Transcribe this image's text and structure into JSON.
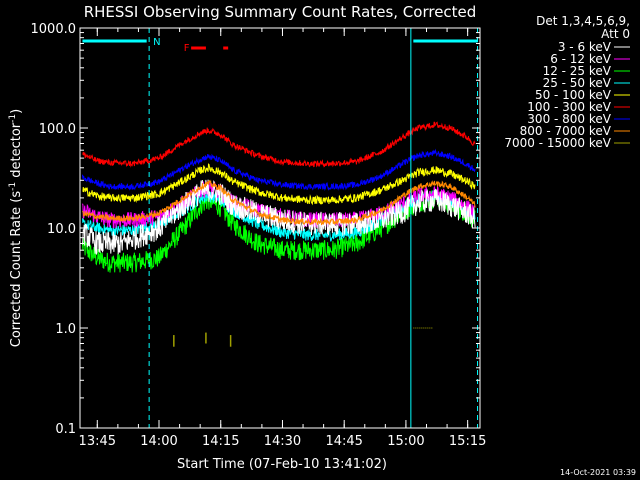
{
  "chart_data": {
    "type": "line",
    "title": "RHESSI Observing Summary Count Rates, Corrected",
    "xlabel": "Start Time (07-Feb-10 13:41:02)",
    "ylabel_main": "Corrected Count Rate (s",
    "ylabel_sup1": "-1",
    "ylabel_mid": " detector",
    "ylabel_sup2": "-1",
    "ylabel_end": ")",
    "yscale": "log",
    "xlim_min": [
      13.68,
      15.3
    ],
    "ylim": [
      0.1,
      1000
    ],
    "y_ticks": [
      {
        "v": 0.1,
        "label": "0.1"
      },
      {
        "v": 1,
        "label": "1.0"
      },
      {
        "v": 10,
        "label": "10.0"
      },
      {
        "v": 100,
        "label": "100.0"
      },
      {
        "v": 1000,
        "label": "1000.0"
      }
    ],
    "x_ticks": [
      {
        "v": 13.75,
        "label": "13:45"
      },
      {
        "v": 14.0,
        "label": "14:00"
      },
      {
        "v": 14.25,
        "label": "14:15"
      },
      {
        "v": 14.5,
        "label": "14:30"
      },
      {
        "v": 14.75,
        "label": "14:45"
      },
      {
        "v": 15.0,
        "label": "15:00"
      },
      {
        "v": 15.25,
        "label": "15:15"
      }
    ],
    "legend_header": [
      "Det 1,3,4,5,6,9,",
      "Att 0"
    ],
    "legend_position": "right",
    "series": [
      {
        "name": "3 - 6 keV",
        "color": "#ffffff",
        "x": [
          13.69,
          13.75,
          13.8,
          13.85,
          14.0,
          14.1,
          14.17,
          14.2,
          14.25,
          14.3,
          14.4,
          14.5,
          14.6,
          14.7,
          14.8,
          14.9,
          15.0,
          15.05,
          15.12,
          15.18,
          15.25,
          15.28
        ],
        "y": [
          9,
          7,
          7,
          7,
          10,
          17,
          23,
          24,
          22,
          17,
          14,
          12,
          11,
          11,
          11,
          12,
          15,
          18,
          19,
          17,
          14,
          12
        ],
        "noise": 0.12
      },
      {
        "name": "6 - 12 keV",
        "color": "#ff00ff",
        "x": [
          13.69,
          13.75,
          13.8,
          13.9,
          14.0,
          14.1,
          14.17,
          14.2,
          14.25,
          14.3,
          14.4,
          14.5,
          14.6,
          14.7,
          14.8,
          14.9,
          15.0,
          15.05,
          15.12,
          15.18,
          15.25,
          15.28
        ],
        "y": [
          15,
          13,
          12,
          12,
          13,
          18,
          24,
          25,
          23,
          18,
          15,
          13,
          12,
          12,
          12,
          14,
          18,
          21,
          22,
          20,
          16,
          14
        ],
        "noise": 0.08
      },
      {
        "name": "12 - 25 keV",
        "color": "#00ff00",
        "x": [
          13.69,
          13.75,
          13.8,
          13.9,
          14.0,
          14.1,
          14.17,
          14.2,
          14.25,
          14.3,
          14.4,
          14.5,
          14.6,
          14.7,
          14.8,
          14.9,
          15.0,
          15.05,
          15.12,
          15.18,
          15.25,
          15.28
        ],
        "y": [
          6.5,
          5,
          4.5,
          4.5,
          5,
          10,
          17,
          19,
          16,
          11,
          7,
          6,
          6,
          6,
          7,
          10,
          15,
          18,
          20,
          17,
          14,
          12
        ],
        "noise": 0.1
      },
      {
        "name": "25 - 50 keV",
        "color": "#00ffff",
        "x": [
          13.69,
          13.75,
          13.8,
          13.9,
          14.0,
          14.1,
          14.17,
          14.2,
          14.25,
          14.3,
          14.4,
          14.5,
          14.6,
          14.7,
          14.8,
          14.9,
          15.0,
          15.05,
          15.12,
          15.18,
          15.25,
          15.28
        ],
        "y": [
          11,
          10,
          9.5,
          9.5,
          11,
          15,
          20,
          21,
          19,
          15,
          11,
          9,
          8.5,
          8.5,
          9,
          12,
          17,
          20,
          21,
          19,
          15,
          13
        ],
        "noise": 0.06
      },
      {
        "name": "50 - 100 keV",
        "color": "#ffff00",
        "x": [
          13.69,
          13.75,
          13.8,
          13.9,
          14.0,
          14.1,
          14.17,
          14.2,
          14.25,
          14.3,
          14.4,
          14.5,
          14.6,
          14.7,
          14.8,
          14.9,
          15.0,
          15.05,
          15.12,
          15.18,
          15.25,
          15.28
        ],
        "y": [
          24,
          21,
          20,
          20,
          22,
          30,
          38,
          40,
          36,
          29,
          23,
          20,
          19,
          19,
          20,
          24,
          31,
          36,
          38,
          35,
          29,
          26
        ],
        "noise": 0.04
      },
      {
        "name": "100 - 300 keV",
        "color": "#ff0000",
        "x": [
          13.69,
          13.75,
          13.8,
          13.9,
          14.0,
          14.1,
          14.17,
          14.2,
          14.25,
          14.3,
          14.4,
          14.5,
          14.6,
          14.7,
          14.8,
          14.9,
          15.0,
          15.05,
          15.12,
          15.18,
          15.25,
          15.28
        ],
        "y": [
          55,
          47,
          45,
          44,
          50,
          72,
          90,
          95,
          86,
          68,
          53,
          46,
          44,
          44,
          46,
          58,
          85,
          100,
          108,
          100,
          80,
          68
        ],
        "noise": 0.03
      },
      {
        "name": "300 - 800 keV",
        "color": "#0000ff",
        "x": [
          13.69,
          13.75,
          13.8,
          13.9,
          14.0,
          14.1,
          14.17,
          14.2,
          14.25,
          14.3,
          14.4,
          14.5,
          14.6,
          14.7,
          14.8,
          14.9,
          15.0,
          15.05,
          15.12,
          15.18,
          15.25,
          15.28
        ],
        "y": [
          32,
          28,
          26,
          26,
          29,
          40,
          49,
          52,
          47,
          38,
          30,
          27,
          26,
          26,
          27,
          33,
          46,
          53,
          56,
          52,
          43,
          38
        ],
        "noise": 0.03
      },
      {
        "name": "800 - 7000 keV",
        "color": "#ff8800",
        "x": [
          13.69,
          13.75,
          13.8,
          13.9,
          14.0,
          14.1,
          14.17,
          14.2,
          14.25,
          14.3,
          14.4,
          14.5,
          14.6,
          14.7,
          14.8,
          14.9,
          15.0,
          15.05,
          15.12,
          15.18,
          15.25,
          15.28
        ],
        "y": [
          14,
          13,
          12.5,
          12.5,
          14,
          20,
          26,
          28,
          25,
          19,
          14,
          12,
          11.5,
          11.5,
          12,
          15,
          22,
          26,
          28,
          26,
          20,
          17
        ],
        "noise": 0.03
      },
      {
        "name": "7000 - 15000 keV",
        "color": "#a0a000",
        "x": [],
        "y": [],
        "noise": 0
      }
    ],
    "flag_label": "N",
    "flag_label_2": "F"
  },
  "timestamp": "14-Oct-2021 03:39"
}
